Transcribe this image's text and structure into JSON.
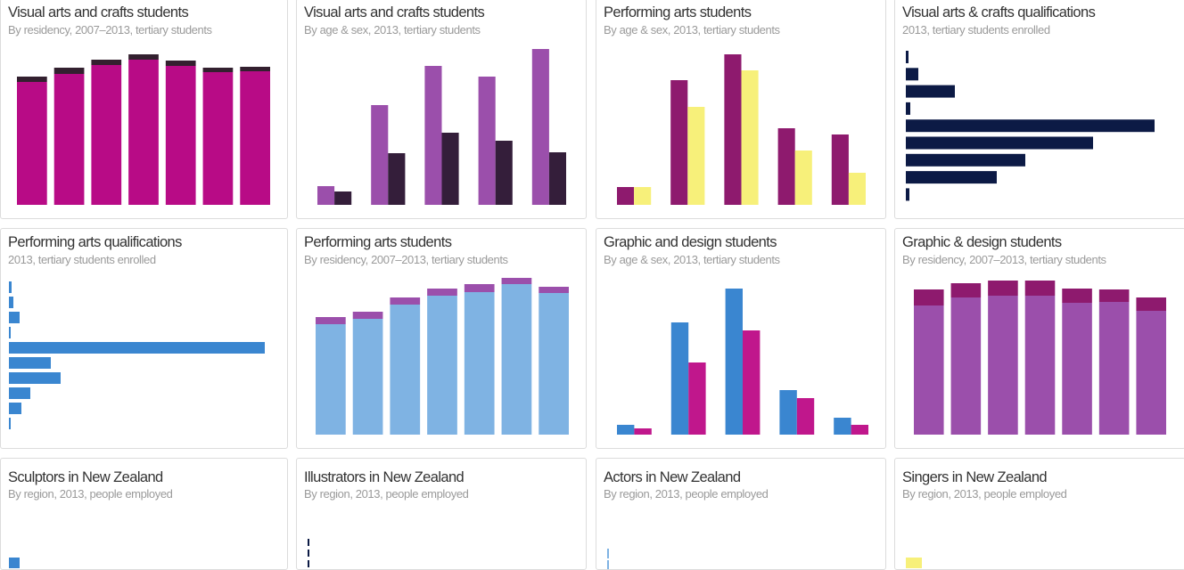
{
  "chart_data": [
    {
      "type": "bar",
      "stacked": true,
      "title": "Visual arts and crafts students",
      "subtitle": "By residency, 2007–2013, tertiary students",
      "series": [
        {
          "values": [
            138,
            147,
            157,
            163,
            156,
            149,
            150
          ],
          "color": "#b80b86"
        },
        {
          "values": [
            6,
            7,
            6,
            6,
            6,
            5,
            5
          ],
          "color": "#33202f"
        }
      ]
    },
    {
      "type": "bar",
      "title": "Visual arts and crafts students",
      "subtitle": "By age & sex, 2013, tertiary students",
      "series": [
        {
          "values": [
            21,
            112,
            156,
            144,
            175
          ],
          "color": "#9b4fab"
        },
        {
          "values": [
            15,
            58,
            81,
            72,
            59
          ],
          "color": "#341e3a"
        }
      ]
    },
    {
      "type": "bar",
      "title": "Performing arts students",
      "subtitle": "By age & sex, 2013, tertiary students",
      "series": [
        {
          "values": [
            20,
            140,
            169,
            86,
            79
          ],
          "color": "#8e1a6e"
        },
        {
          "values": [
            20,
            110,
            151,
            61,
            36
          ],
          "color": "#f7f07a"
        }
      ]
    },
    {
      "type": "hbar",
      "title": "Visual arts & crafts qualifications",
      "subtitle": "2013, tertiary students enrolled",
      "series": [
        {
          "values": [
            3,
            14,
            55,
            5,
            279,
            210,
            134,
            102,
            4
          ],
          "color": "#0c1a45"
        }
      ]
    },
    {
      "type": "hbar",
      "title": "Performing arts qualifications",
      "subtitle": "2013, tertiary students enrolled",
      "series": [
        {
          "values": [
            3,
            5,
            12,
            2,
            287,
            47,
            58,
            24,
            14,
            2
          ],
          "color": "#3a86d0"
        }
      ]
    },
    {
      "type": "bar",
      "stacked": true,
      "title": "Performing arts students",
      "subtitle": "By residency, 2007–2013, tertiary students",
      "series": [
        {
          "values": [
            124,
            130,
            146,
            156,
            160,
            169,
            159
          ],
          "color": "#7fb3e3"
        },
        {
          "values": [
            8,
            8,
            8,
            8,
            9,
            7,
            7
          ],
          "color": "#9b4fab"
        }
      ]
    },
    {
      "type": "bar",
      "title": "Graphic and design students",
      "subtitle": "By age & sex, 2013, tertiary students",
      "series": [
        {
          "values": [
            11,
            126,
            164,
            50,
            19
          ],
          "color": "#3a86d0"
        },
        {
          "values": [
            7,
            81,
            117,
            41,
            11
          ],
          "color": "#c0178c"
        }
      ]
    },
    {
      "type": "bar",
      "stacked": true,
      "title": "Graphic & design students",
      "subtitle": "By residency, 2007–2013, tertiary students",
      "series": [
        {
          "values": [
            145,
            154,
            156,
            156,
            148,
            149,
            139
          ],
          "color": "#9b4fab"
        },
        {
          "values": [
            18,
            16,
            17,
            17,
            16,
            14,
            15
          ],
          "color": "#8e1a6e"
        }
      ]
    },
    {
      "type": "hbar",
      "title": "Sculptors in New Zealand",
      "subtitle": "By region, 2013, people employed",
      "series": [
        {
          "values": [
            12
          ],
          "color": "#3a86d0"
        }
      ]
    },
    {
      "type": "hbar",
      "title": "Illustrators in New Zealand",
      "subtitle": "By region, 2013, people employed",
      "series": [
        {
          "values": [
            2,
            2,
            2
          ],
          "color": "#0c1a45"
        }
      ]
    },
    {
      "type": "hbar",
      "title": "Actors in New Zealand",
      "subtitle": "By region, 2013, people employed",
      "series": [
        {
          "values": [
            2,
            2
          ],
          "color": "#7fb3e3"
        }
      ]
    },
    {
      "type": "hbar",
      "title": "Singers in New Zealand",
      "subtitle": "By region, 2013, people employed",
      "series": [
        {
          "values": [
            18
          ],
          "color": "#f7f07a"
        }
      ]
    }
  ]
}
